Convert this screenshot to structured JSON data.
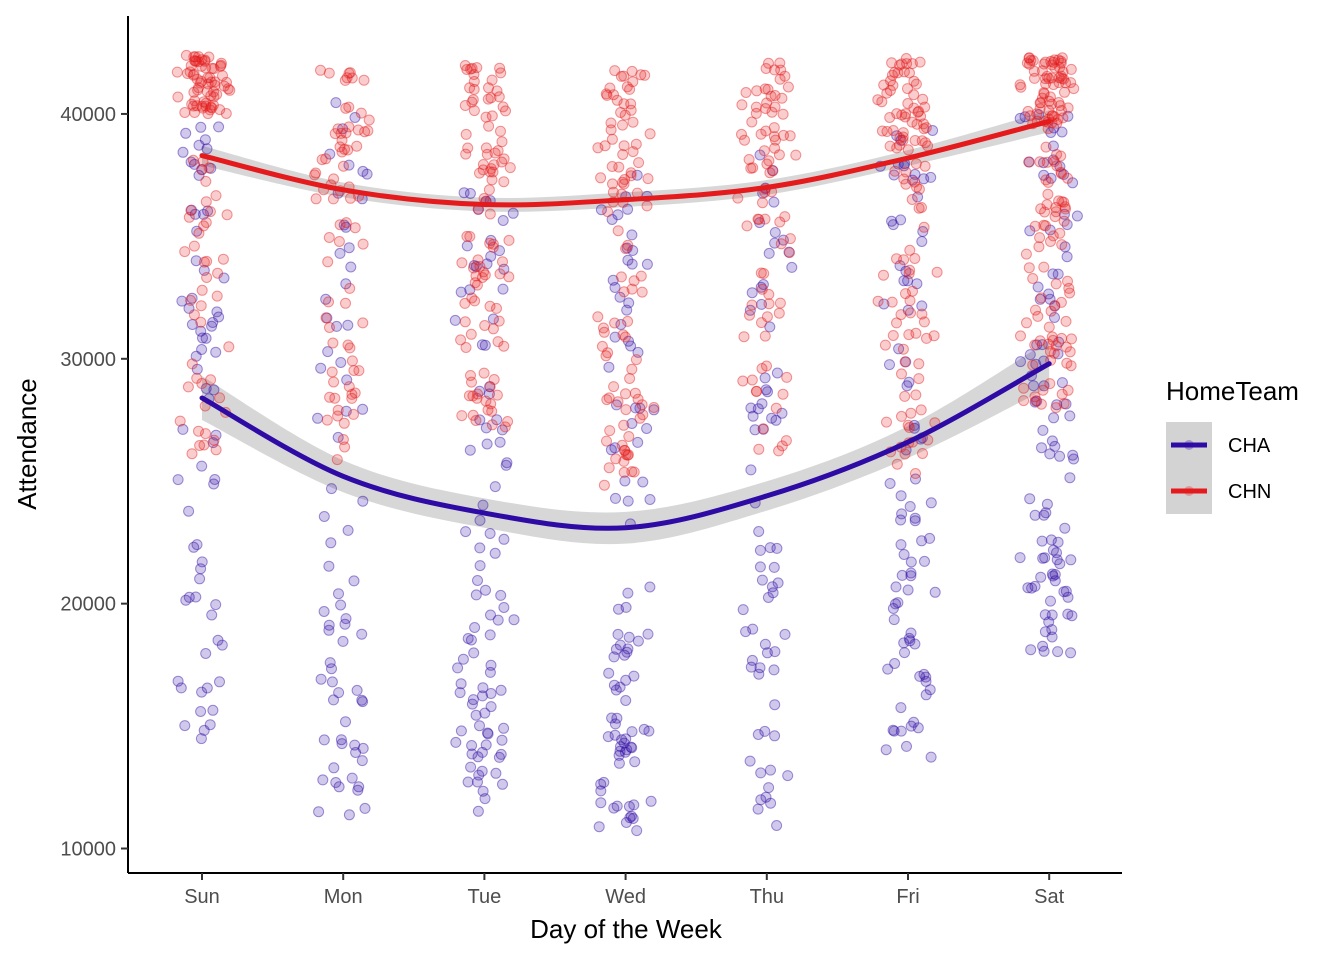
{
  "chart_data": {
    "type": "scatter",
    "xlabel": "Day of the Week",
    "ylabel": "Attendance",
    "categories": [
      "Sun",
      "Mon",
      "Tue",
      "Wed",
      "Thu",
      "Fri",
      "Sat"
    ],
    "ylim": [
      9000,
      44000
    ],
    "yticks": [
      10000,
      20000,
      30000,
      40000
    ],
    "ytick_labels": [
      "10000",
      "20000",
      "30000",
      "40000"
    ],
    "grid": false,
    "legend": {
      "title": "HomeTeam",
      "placement": "right",
      "entries": [
        "CHA",
        "CHN"
      ]
    },
    "series": [
      {
        "name": "CHA",
        "color": "#2E0BA4",
        "trend": {
          "type": "smooth",
          "values": [
            28400,
            25200,
            23700,
            23100,
            24400,
            26600,
            29800
          ]
        },
        "points": {
          "Sun": {
            "count": 70,
            "min": 14300,
            "max": 39500,
            "center": 27000
          },
          "Mon": {
            "count": 70,
            "min": 11300,
            "max": 40500,
            "center": 21000
          },
          "Tue": {
            "count": 95,
            "min": 11300,
            "max": 37500,
            "center": 19000
          },
          "Wed": {
            "count": 95,
            "min": 10700,
            "max": 38500,
            "center": 18500
          },
          "Thu": {
            "count": 70,
            "min": 10900,
            "max": 38500,
            "center": 20500
          },
          "Fri": {
            "count": 85,
            "min": 13600,
            "max": 40000,
            "center": 24000
          },
          "Sat": {
            "count": 100,
            "min": 17700,
            "max": 40000,
            "center": 27500
          }
        }
      },
      {
        "name": "CHN",
        "color": "#E41A1C",
        "trend": {
          "type": "smooth",
          "values": [
            38300,
            36900,
            36300,
            36500,
            37000,
            38200,
            39700
          ]
        },
        "points": {
          "Sun": {
            "count": 110,
            "min": 26000,
            "max": 42400,
            "center": 40000
          },
          "Mon": {
            "count": 75,
            "min": 25000,
            "max": 41800,
            "center": 36500
          },
          "Tue": {
            "count": 105,
            "min": 27000,
            "max": 42000,
            "center": 36500
          },
          "Wed": {
            "count": 100,
            "min": 24800,
            "max": 41800,
            "center": 36000
          },
          "Thu": {
            "count": 85,
            "min": 26000,
            "max": 42300,
            "center": 37500
          },
          "Fri": {
            "count": 115,
            "min": 25000,
            "max": 42300,
            "center": 38500
          },
          "Sat": {
            "count": 150,
            "min": 28000,
            "max": 42300,
            "center": 39500
          }
        }
      }
    ],
    "confidence_band_color": "#D3D3D3"
  }
}
